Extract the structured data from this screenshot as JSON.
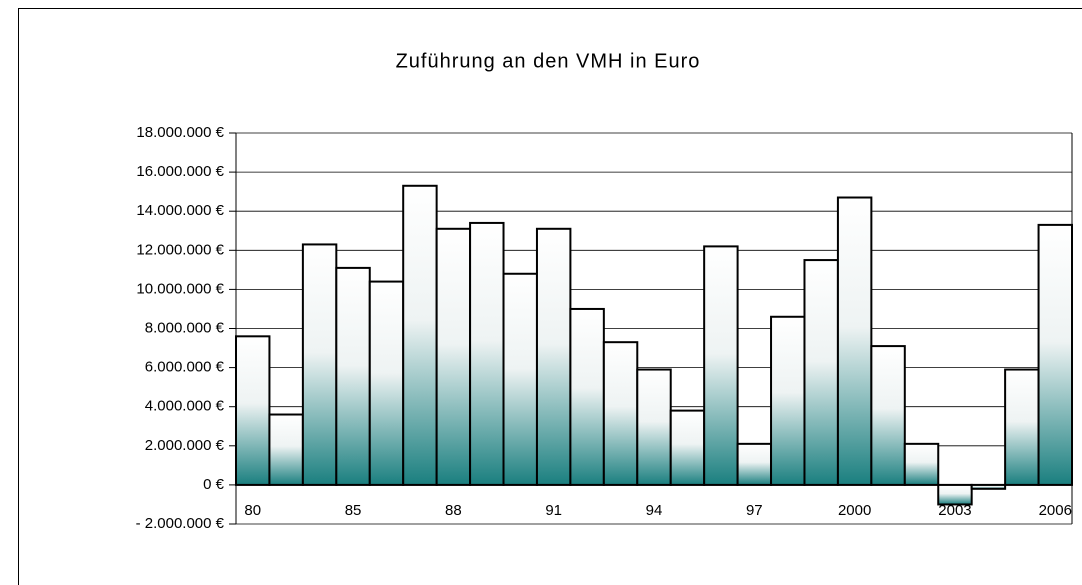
{
  "chart_data": {
    "type": "bar",
    "title": "Zuführung an den VMH in Euro",
    "categories": [
      "80",
      null,
      null,
      "85",
      null,
      null,
      "88",
      null,
      null,
      "91",
      null,
      null,
      "94",
      null,
      null,
      "97",
      null,
      null,
      "2000",
      null,
      null,
      "2003",
      null,
      null,
      "2006"
    ],
    "values": [
      7600000,
      3600000,
      12300000,
      11100000,
      10400000,
      15300000,
      13100000,
      13400000,
      10800000,
      13100000,
      9000000,
      7300000,
      5900000,
      3800000,
      12200000,
      2100000,
      8600000,
      11500000,
      14700000,
      7100000,
      2100000,
      -1000000,
      -200000,
      5900000,
      13300000
    ],
    "color": "#1a7f7f",
    "ylim": [
      -2000000,
      18000000
    ],
    "yticks": [
      {
        "value": -2000000,
        "label": "- 2.000.000 €"
      },
      {
        "value": 0,
        "label": "0 €"
      },
      {
        "value": 2000000,
        "label": "2.000.000 €"
      },
      {
        "value": 4000000,
        "label": "4.000.000 €"
      },
      {
        "value": 6000000,
        "label": "6.000.000 €"
      },
      {
        "value": 8000000,
        "label": "8.000.000 €"
      },
      {
        "value": 10000000,
        "label": "10.000.000 €"
      },
      {
        "value": 12000000,
        "label": "12.000.000 €"
      },
      {
        "value": 14000000,
        "label": "14.000.000 €"
      },
      {
        "value": 16000000,
        "label": "16.000.000 €"
      },
      {
        "value": 18000000,
        "label": "18.000.000 €"
      }
    ],
    "grid": true
  }
}
